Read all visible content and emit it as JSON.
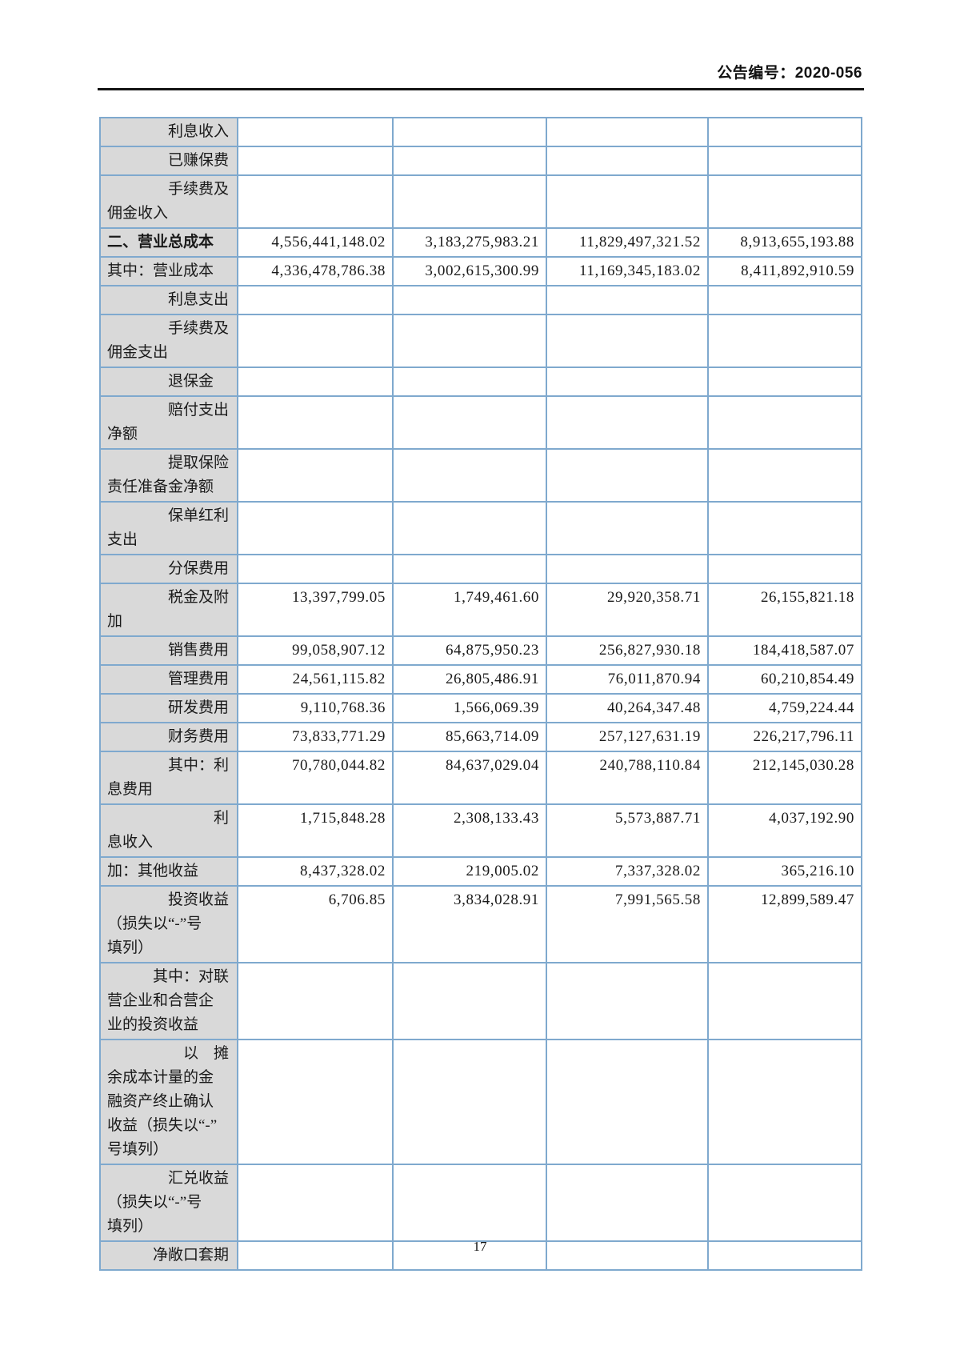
{
  "page": {
    "doc_number": "公告编号：2020-056",
    "page_number": "17"
  },
  "colors": {
    "table_border": "#7fa9ce",
    "label_background": "#d9d9d9",
    "header_rule": "#141414",
    "text": "#1a1a1a"
  },
  "table": {
    "rows": [
      {
        "label": "　　　　利息收入",
        "bold": false,
        "values": [
          "",
          "",
          "",
          ""
        ]
      },
      {
        "label": "　　　　已赚保费",
        "bold": false,
        "values": [
          "",
          "",
          "",
          ""
        ]
      },
      {
        "label": "　　　　手续费及\n佣金收入",
        "bold": false,
        "values": [
          "",
          "",
          "",
          ""
        ]
      },
      {
        "label": "二、营业总成本",
        "bold": true,
        "values": [
          "4,556,441,148.02",
          "3,183,275,983.21",
          "11,829,497,321.52",
          "8,913,655,193.88"
        ]
      },
      {
        "label": "其中：营业成本",
        "bold": false,
        "values": [
          "4,336,478,786.38",
          "3,002,615,300.99",
          "11,169,345,183.02",
          "8,411,892,910.59"
        ]
      },
      {
        "label": "　　　　利息支出",
        "bold": false,
        "values": [
          "",
          "",
          "",
          ""
        ]
      },
      {
        "label": "　　　　手续费及\n佣金支出",
        "bold": false,
        "values": [
          "",
          "",
          "",
          ""
        ]
      },
      {
        "label": "　　　　退保金",
        "bold": false,
        "values": [
          "",
          "",
          "",
          ""
        ]
      },
      {
        "label": "　　　　赔付支出\n净额",
        "bold": false,
        "values": [
          "",
          "",
          "",
          ""
        ]
      },
      {
        "label": "　　　　提取保险\n责任准备金净额",
        "bold": false,
        "values": [
          "",
          "",
          "",
          ""
        ]
      },
      {
        "label": "　　　　保单红利\n支出",
        "bold": false,
        "values": [
          "",
          "",
          "",
          ""
        ]
      },
      {
        "label": "　　　　分保费用",
        "bold": false,
        "values": [
          "",
          "",
          "",
          ""
        ]
      },
      {
        "label": "　　　　税金及附\n加",
        "bold": false,
        "values": [
          "13,397,799.05",
          "1,749,461.60",
          "29,920,358.71",
          "26,155,821.18"
        ]
      },
      {
        "label": "　　　　销售费用",
        "bold": false,
        "values": [
          "99,058,907.12",
          "64,875,950.23",
          "256,827,930.18",
          "184,418,587.07"
        ]
      },
      {
        "label": "　　　　管理费用",
        "bold": false,
        "values": [
          "24,561,115.82",
          "26,805,486.91",
          "76,011,870.94",
          "60,210,854.49"
        ]
      },
      {
        "label": "　　　　研发费用",
        "bold": false,
        "values": [
          "9,110,768.36",
          "1,566,069.39",
          "40,264,347.48",
          "4,759,224.44"
        ]
      },
      {
        "label": "　　　　财务费用",
        "bold": false,
        "values": [
          "73,833,771.29",
          "85,663,714.09",
          "257,127,631.19",
          "226,217,796.11"
        ]
      },
      {
        "label": "　　　　其中：利\n息费用",
        "bold": false,
        "values": [
          "70,780,044.82",
          "84,637,029.04",
          "240,788,110.84",
          "212,145,030.28"
        ]
      },
      {
        "label": "　　　　　　　利\n息收入",
        "bold": false,
        "values": [
          "1,715,848.28",
          "2,308,133.43",
          "5,573,887.71",
          "4,037,192.90"
        ]
      },
      {
        "label": "加：其他收益",
        "bold": false,
        "values": [
          "8,437,328.02",
          "219,005.02",
          "7,337,328.02",
          "365,216.10"
        ]
      },
      {
        "label": "　　　　投资收益\n（损失以“-”号\n填列）",
        "bold": false,
        "values": [
          "6,706.85",
          "3,834,028.91",
          "7,991,565.58",
          "12,899,589.47"
        ]
      },
      {
        "label": "　　　其中：对联\n营企业和合营企\n业的投资收益",
        "bold": false,
        "values": [
          "",
          "",
          "",
          ""
        ]
      },
      {
        "label": "　　　　　以　摊\n余成本计量的金\n融资产终止确认\n收益（损失以“-”\n号填列）",
        "bold": false,
        "values": [
          "",
          "",
          "",
          ""
        ]
      },
      {
        "label": "　　　　汇兑收益\n（损失以“-”号\n填列）",
        "bold": false,
        "values": [
          "",
          "",
          "",
          ""
        ]
      },
      {
        "label": "　　　净敞口套期",
        "bold": false,
        "values": [
          "",
          "",
          "",
          ""
        ]
      }
    ]
  }
}
